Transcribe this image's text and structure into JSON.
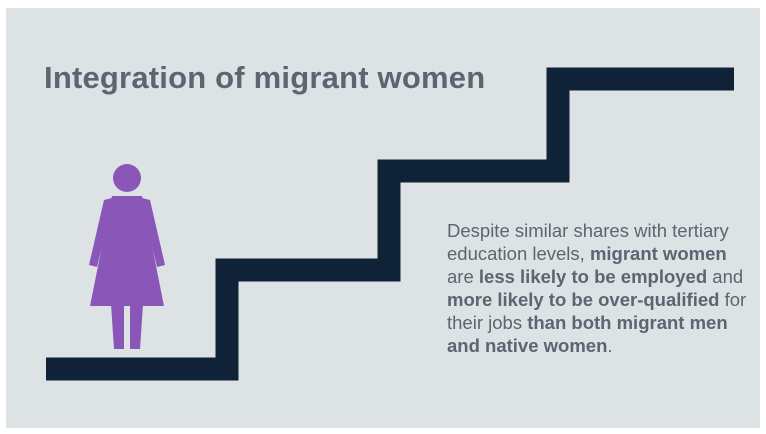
{
  "title": "Integration of migrant women",
  "description": {
    "p1": "Despite similar shares with tertiary education levels, ",
    "b1": "migrant women",
    "p2": " are ",
    "b2": "less likely to be employed",
    "p3": " and ",
    "b3": "more likely to be over-qualified",
    "p4": " for their jobs ",
    "b4": "than both migrant men and native women",
    "p5": "."
  },
  "colors": {
    "background": "#dde2e5",
    "stairs": "#0f2237",
    "figure": "#8a57b8",
    "text": "#5b6670"
  },
  "icons": [
    "woman-figure-icon",
    "staircase-graphic"
  ]
}
